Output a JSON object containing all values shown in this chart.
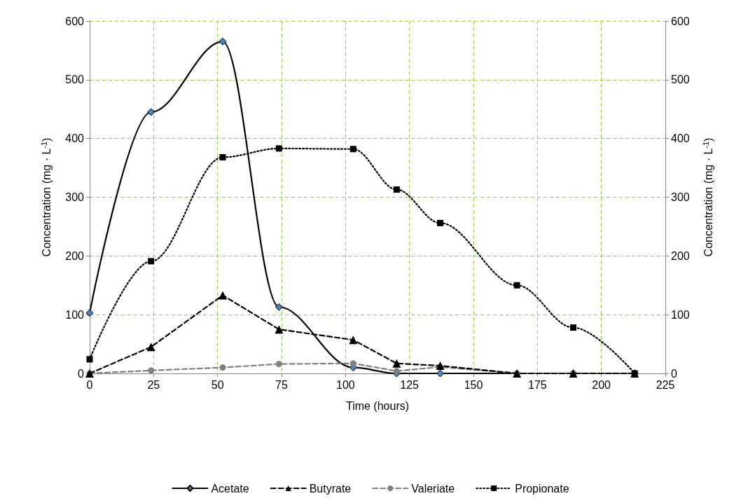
{
  "chart_data": {
    "type": "line",
    "xlabel": "Time (hours)",
    "ylabel": "Concentration (mg · L$^{-1}$)",
    "y2label": "Concentration (mg · L$^{-1}$)",
    "x": [
      0,
      24,
      52,
      74,
      103,
      120,
      137,
      167,
      189,
      213
    ],
    "xlim": [
      0,
      225
    ],
    "xticks": [
      0,
      25,
      50,
      75,
      100,
      125,
      150,
      175,
      200,
      225
    ],
    "ylim": [
      0,
      600
    ],
    "yticks": [
      0,
      100,
      200,
      300,
      400,
      500,
      600
    ],
    "y2lim": [
      0,
      600
    ],
    "y2ticks": [
      0,
      100,
      200,
      300,
      400,
      500,
      600
    ],
    "grid": true,
    "legend": "bottom",
    "series": [
      {
        "name": "Acetate",
        "color": "#000000",
        "marker": "diamond",
        "line_style": "solid",
        "values": [
          103,
          445,
          565,
          113,
          10,
          0,
          0,
          0,
          0,
          0
        ]
      },
      {
        "name": "Butyrate",
        "color": "#000000",
        "marker": "triangle",
        "line_style": "dashed",
        "values": [
          0,
          45,
          133,
          75,
          57,
          17,
          13,
          0,
          0,
          0
        ]
      },
      {
        "name": "Valeriate",
        "color": "#808080",
        "marker": "circle",
        "line_style": "dashed",
        "values": [
          0,
          5,
          10,
          16,
          17,
          4,
          11,
          0,
          0,
          0
        ]
      },
      {
        "name": "Propionate",
        "color": "#000000",
        "marker": "square",
        "line_style": "dotted",
        "values": [
          24,
          191,
          368,
          383,
          382,
          313,
          256,
          150,
          78,
          0
        ]
      }
    ]
  }
}
